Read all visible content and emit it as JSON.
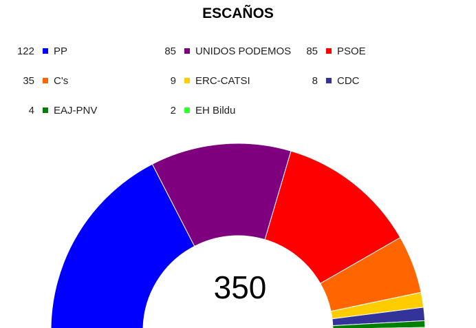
{
  "chart_data": {
    "type": "pie",
    "subtype": "semicircle",
    "title": "ESCAÑOS",
    "total": "350",
    "categories": [
      "PP",
      "UNIDOS PODEMOS",
      "PSOE",
      "C's",
      "ERC-CATSI",
      "CDC",
      "EAJ-PNV",
      "EH Bildu"
    ],
    "values": [
      122,
      85,
      85,
      35,
      9,
      8,
      4,
      2
    ],
    "colors": [
      "#0000ff",
      "#7f007f",
      "#ff0000",
      "#ff6600",
      "#ffcc00",
      "#333399",
      "#007f00",
      "#33ff33"
    ],
    "legend_placement": "top"
  }
}
